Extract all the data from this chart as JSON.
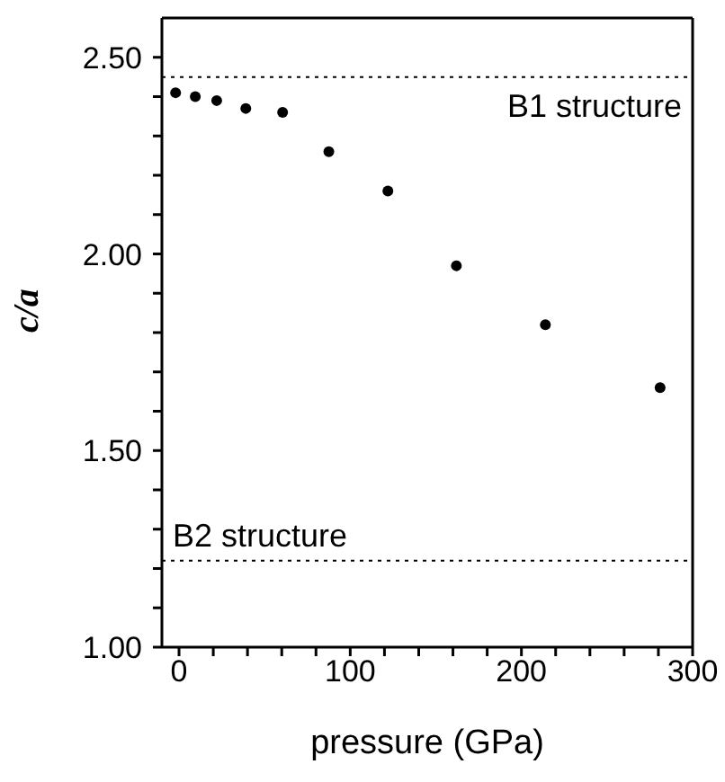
{
  "chart_data": {
    "type": "scatter",
    "xlabel": "pressure  (GPa)",
    "ylabel": "c/a",
    "x": [
      -2,
      9.5,
      22,
      39,
      60.5,
      87.5,
      122,
      162,
      214,
      281
    ],
    "series": [
      {
        "color": "#000000",
        "values": [
          2.41,
          2.4,
          2.39,
          2.37,
          2.36,
          2.26,
          2.16,
          1.97,
          1.82,
          1.66
        ]
      }
    ],
    "xlim": [
      -10,
      300
    ],
    "ylim": [
      1.0,
      2.6
    ],
    "xticks": [
      0,
      {
        "value": 20,
        "label": null
      },
      {
        "value": 40,
        "label": null
      },
      {
        "value": 60,
        "label": null
      },
      {
        "value": 80,
        "label": null
      },
      100,
      {
        "value": 120,
        "label": null
      },
      {
        "value": 140,
        "label": null
      },
      {
        "value": 160,
        "label": null
      },
      {
        "value": 180,
        "label": null
      },
      200,
      {
        "value": 220,
        "label": null
      },
      {
        "value": 240,
        "label": null
      },
      {
        "value": 260,
        "label": null
      },
      {
        "value": 280,
        "label": null
      },
      300
    ],
    "yticks": [
      {
        "value": 1.0,
        "label": "1.00"
      },
      {
        "value": 1.1,
        "label": null
      },
      {
        "value": 1.2,
        "label": null
      },
      {
        "value": 1.3,
        "label": null
      },
      {
        "value": 1.4,
        "label": null
      },
      {
        "value": 1.5,
        "label": "1.50"
      },
      {
        "value": 1.6,
        "label": null
      },
      {
        "value": 1.7,
        "label": null
      },
      {
        "value": 1.8,
        "label": null
      },
      {
        "value": 1.9,
        "label": null
      },
      {
        "value": 2.0,
        "label": "2.00"
      },
      {
        "value": 2.1,
        "label": null
      },
      {
        "value": 2.2,
        "label": null
      },
      {
        "value": 2.3,
        "label": null
      },
      {
        "value": 2.4,
        "label": null
      },
      {
        "value": 2.5,
        "label": "2.50"
      }
    ],
    "ref_lines": [
      {
        "axis": "y",
        "value": 2.45,
        "label": "B1 structure",
        "line_style": "dotted"
      },
      {
        "axis": "y",
        "value": 1.22,
        "label": "B2 structure",
        "line_style": "dotted"
      }
    ],
    "marker": "circle",
    "grid": false,
    "legend": false
  }
}
